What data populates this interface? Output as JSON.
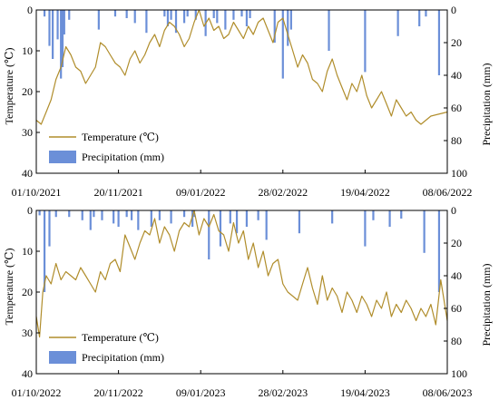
{
  "colors": {
    "temperature": "#b08d2b",
    "temperature_alt": "#7fa84a",
    "precipitation": "#6b8fd8",
    "precipitation_edge": "#4a6fc0",
    "axis": "#000000"
  },
  "chart_data": [
    {
      "type": "line",
      "panel": "top",
      "x_ticks": [
        "01/10/2021",
        "20/11/2021",
        "09/01/2022",
        "28/02/2022",
        "19/04/2022",
        "08/06/2022"
      ],
      "x_range": [
        "2021-10-01",
        "2022-06-08"
      ],
      "ylabel_left": "Temperature (℃)",
      "ylabel_right": "Precipitation (mm)",
      "ylim_left": [
        40,
        0
      ],
      "ylim_right": [
        100,
        0
      ],
      "y_ticks_left": [
        "0",
        "10",
        "20",
        "30",
        "40"
      ],
      "y_ticks_right": [
        "0",
        "20",
        "40",
        "60",
        "80",
        "100"
      ],
      "legend": [
        "Temperature (℃)",
        "Precipitation (mm)"
      ],
      "legend_position": "bottom-left",
      "series": [
        {
          "name": "Temperature (℃)",
          "kind": "line",
          "axis": "left",
          "x": [
            0,
            3,
            6,
            9,
            12,
            15,
            18,
            21,
            24,
            27,
            30,
            33,
            36,
            39,
            42,
            45,
            48,
            51,
            54,
            57,
            60,
            63,
            66,
            69,
            72,
            75,
            78,
            81,
            84,
            87,
            90,
            93,
            96,
            99,
            102,
            105,
            108,
            111,
            114,
            117,
            120,
            123,
            126,
            129,
            132,
            135,
            138,
            141,
            144,
            147,
            150,
            153,
            156,
            159,
            162,
            165,
            168,
            171,
            174,
            177,
            180,
            183,
            186,
            189,
            192,
            195,
            198,
            201,
            204,
            207,
            210,
            213,
            216,
            219,
            222,
            225,
            228,
            231,
            234,
            240,
            250
          ],
          "values": [
            27,
            28,
            25,
            22,
            17,
            14,
            9,
            11,
            14,
            15,
            18,
            16,
            14,
            8,
            9,
            11,
            13,
            14,
            16,
            12,
            10,
            13,
            11,
            8,
            6,
            9,
            5,
            3,
            4,
            6,
            9,
            7,
            3,
            0,
            4,
            2,
            5,
            4,
            7,
            6,
            3,
            5,
            7,
            4,
            6,
            3,
            2,
            5,
            8,
            3,
            2,
            6,
            10,
            14,
            11,
            13,
            17,
            18,
            20,
            15,
            12,
            16,
            19,
            22,
            18,
            20,
            16,
            21,
            24,
            22,
            20,
            23,
            26,
            22,
            24,
            26,
            25,
            27,
            28,
            26,
            25
          ]
        },
        {
          "name": "Precipitation (mm)",
          "kind": "bar",
          "axis": "right",
          "x": [
            5,
            8,
            10,
            13,
            15,
            16,
            17,
            20,
            38,
            48,
            55,
            60,
            67,
            78,
            80,
            82,
            85,
            90,
            92,
            97,
            103,
            108,
            110,
            115,
            120,
            125,
            128,
            130,
            145,
            150,
            153,
            155,
            178,
            200,
            220,
            233,
            237,
            245
          ],
          "values": [
            4,
            22,
            30,
            18,
            42,
            35,
            15,
            6,
            12,
            4,
            5,
            8,
            14,
            4,
            10,
            6,
            14,
            8,
            4,
            6,
            16,
            5,
            8,
            12,
            6,
            4,
            10,
            5,
            20,
            42,
            22,
            12,
            25,
            38,
            16,
            10,
            4,
            40
          ]
        }
      ]
    },
    {
      "type": "line",
      "panel": "bottom",
      "x_ticks": [
        "01/10/2022",
        "20/11/2022",
        "09/01/2023",
        "28/02/2023",
        "19/04/2023",
        "08/06/2023"
      ],
      "x_range": [
        "2022-10-01",
        "2023-06-08"
      ],
      "ylabel_left": "Temperature (℃)",
      "ylabel_right": "Precipitation (mm)",
      "ylim_left": [
        40,
        0
      ],
      "ylim_right": [
        100,
        0
      ],
      "y_ticks_left": [
        "0",
        "10",
        "20",
        "30",
        "40"
      ],
      "y_ticks_right": [
        "0",
        "20",
        "40",
        "60",
        "80",
        "100"
      ],
      "legend": [
        "Temperature (℃)",
        "Precipitation (mm)"
      ],
      "legend_position": "bottom-left",
      "series": [
        {
          "name": "Temperature (℃)",
          "kind": "line",
          "axis": "left",
          "x": [
            0,
            2,
            4,
            6,
            9,
            12,
            15,
            18,
            21,
            24,
            27,
            30,
            33,
            36,
            39,
            42,
            45,
            48,
            51,
            54,
            57,
            60,
            63,
            66,
            69,
            72,
            75,
            78,
            81,
            84,
            87,
            90,
            93,
            96,
            99,
            102,
            105,
            108,
            111,
            114,
            117,
            120,
            123,
            126,
            129,
            132,
            135,
            138,
            141,
            144,
            147,
            150,
            153,
            156,
            159,
            162,
            165,
            168,
            171,
            174,
            177,
            180,
            183,
            186,
            189,
            192,
            195,
            198,
            201,
            204,
            207,
            210,
            213,
            216,
            219,
            222,
            225,
            228,
            231,
            234,
            237,
            240,
            243,
            246,
            250
          ],
          "values": [
            26,
            31,
            20,
            16,
            18,
            13,
            17,
            15,
            16,
            17,
            14,
            16,
            18,
            20,
            15,
            17,
            13,
            12,
            15,
            6,
            9,
            12,
            8,
            5,
            6,
            2,
            8,
            4,
            6,
            10,
            5,
            3,
            4,
            0,
            6,
            2,
            4,
            1,
            5,
            6,
            10,
            3,
            8,
            5,
            12,
            8,
            14,
            10,
            16,
            13,
            12,
            18,
            20,
            21,
            22,
            18,
            14,
            19,
            23,
            16,
            22,
            19,
            21,
            25,
            20,
            22,
            25,
            21,
            23,
            26,
            22,
            24,
            20,
            26,
            23,
            25,
            22,
            24,
            27,
            24,
            26,
            23,
            28,
            17,
            27
          ]
        },
        {
          "name": "Precipitation (mm)",
          "kind": "bar",
          "axis": "right",
          "x": [
            2,
            5,
            8,
            12,
            20,
            28,
            33,
            35,
            40,
            47,
            50,
            55,
            58,
            62,
            70,
            75,
            82,
            90,
            95,
            96,
            105,
            112,
            118,
            122,
            128,
            135,
            140,
            160,
            180,
            200,
            205,
            215,
            222,
            236,
            245
          ],
          "values": [
            3,
            50,
            22,
            4,
            4,
            6,
            12,
            4,
            6,
            8,
            10,
            4,
            6,
            12,
            10,
            6,
            8,
            4,
            10,
            4,
            30,
            22,
            8,
            14,
            10,
            6,
            18,
            14,
            8,
            22,
            6,
            10,
            5,
            26,
            50
          ]
        }
      ]
    }
  ]
}
